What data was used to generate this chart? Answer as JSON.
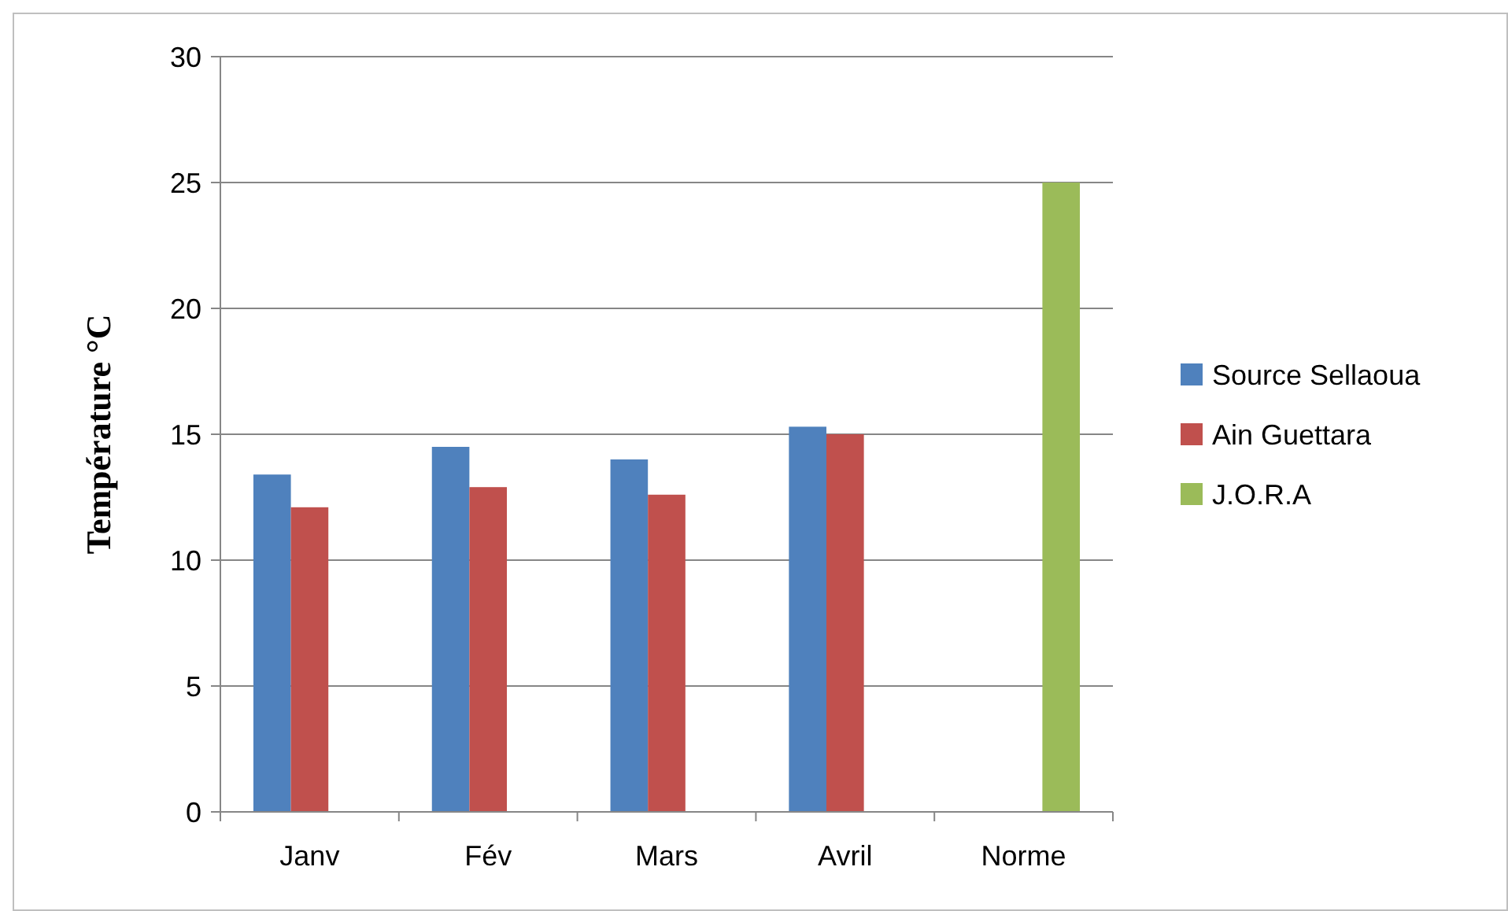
{
  "chart_data": {
    "type": "bar",
    "ylabel": "Température °C",
    "categories": [
      "Janv",
      "Fév",
      "Mars",
      "Avril",
      "Norme"
    ],
    "series": [
      {
        "name": "Source Sellaoua",
        "color": "#4f81bd",
        "values": [
          13.4,
          14.5,
          14.0,
          15.3,
          null
        ]
      },
      {
        "name": "Ain Guettara",
        "color": "#c0504d",
        "values": [
          12.1,
          12.9,
          12.6,
          15.0,
          null
        ]
      },
      {
        "name": "J.O.R.A",
        "color": "#9bbb59",
        "values": [
          null,
          null,
          null,
          null,
          25
        ]
      }
    ],
    "ylim": [
      0,
      30
    ],
    "yticks": [
      0,
      5,
      10,
      15,
      20,
      25,
      30
    ],
    "grid": "y",
    "legend": "right"
  }
}
